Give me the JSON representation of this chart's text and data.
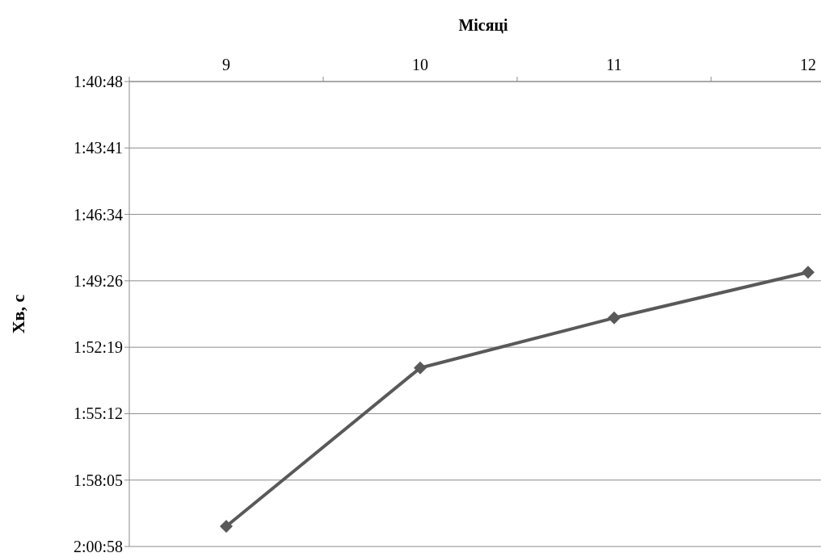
{
  "chart_data": {
    "type": "line",
    "xlabel": "Місяці",
    "ylabel": "Хв, с",
    "categories": [
      "9",
      "10",
      "11",
      "12"
    ],
    "series": [
      {
        "color": "#595959",
        "values": [
          7205,
          6793,
          6663,
          6544
        ]
      }
    ],
    "ylim": [
      7257.6,
      6048
    ],
    "yticks": [
      {
        "value": 6048,
        "label": "1:40:48"
      },
      {
        "value": 6220.8,
        "label": "1:43:41"
      },
      {
        "value": 6393.6,
        "label": "1:46:34"
      },
      {
        "value": 6566.4,
        "label": "1:49:26"
      },
      {
        "value": 6739.2,
        "label": "1:52:19"
      },
      {
        "value": 6912,
        "label": "1:55:12"
      },
      {
        "value": 7084.8,
        "label": "1:58:05"
      },
      {
        "value": 7257.6,
        "label": "2:00:58"
      }
    ],
    "grid": "y",
    "marker": "diamond",
    "line_style": "solid"
  }
}
